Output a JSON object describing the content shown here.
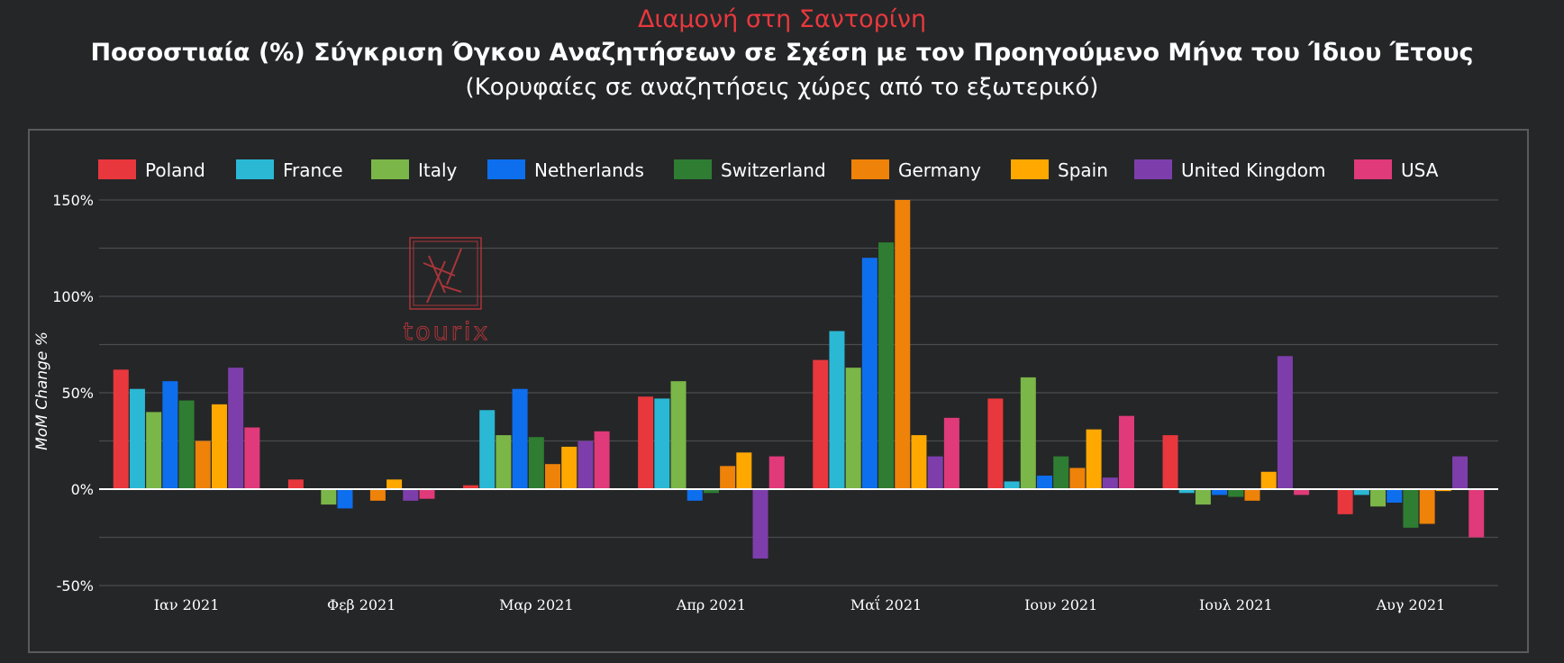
{
  "header": {
    "title": "Διαμονή στη Σαντορίνη",
    "subtitle": "Ποσοστιαία (%) Σύγκριση Όγκου Αναζητήσεων σε Σχέση με τον Προηγούμενο Μήνα του Ίδιου Έτους",
    "note": "(Κορυφαίες σε αναζητήσεις χώρες από το εξωτερικό)"
  },
  "watermark": {
    "text": "tourix"
  },
  "colors": {
    "background": "#252628",
    "grid": "#4a4b4e",
    "axis": "#ffffff",
    "text": "#ffffff",
    "title_accent": "#e8383d"
  },
  "chart_data": {
    "type": "bar",
    "ylabel": "MoM Change %",
    "xlabel": "",
    "ylim": [
      -50,
      150
    ],
    "yticks": [
      -50,
      0,
      50,
      100,
      150
    ],
    "ytick_labels": [
      "-50%",
      "0%",
      "50%",
      "100%",
      "150%"
    ],
    "grid": true,
    "legend_position": "top",
    "categories": [
      "Ιαν 2021",
      "Φεβ 2021",
      "Μαρ 2021",
      "Απρ 2021",
      "Μαΐ 2021",
      "Ιουν 2021",
      "Ιουλ 2021",
      "Αυγ 2021"
    ],
    "series": [
      {
        "name": "Poland",
        "color": "#e8383d",
        "values": [
          62,
          5,
          2,
          48,
          67,
          47,
          28,
          -13
        ]
      },
      {
        "name": "France",
        "color": "#2bb8d4",
        "values": [
          52,
          0,
          41,
          47,
          82,
          4,
          -2,
          -3
        ]
      },
      {
        "name": "Italy",
        "color": "#7ab648",
        "values": [
          40,
          -8,
          28,
          56,
          63,
          58,
          -8,
          -9
        ]
      },
      {
        "name": "Netherlands",
        "color": "#0d6fee",
        "values": [
          56,
          -10,
          52,
          -6,
          120,
          7,
          -3,
          -7
        ]
      },
      {
        "name": "Switzerland",
        "color": "#2e7d32",
        "values": [
          46,
          0,
          27,
          -2,
          128,
          17,
          -4,
          -20
        ]
      },
      {
        "name": "Germany",
        "color": "#ef8209",
        "values": [
          25,
          -6,
          13,
          12,
          150,
          11,
          -6,
          -18
        ]
      },
      {
        "name": "Spain",
        "color": "#ffa800",
        "values": [
          44,
          5,
          22,
          19,
          28,
          31,
          9,
          -1
        ]
      },
      {
        "name": "United Kingdom",
        "color": "#7d3eab",
        "values": [
          63,
          -6,
          25,
          -36,
          17,
          6,
          69,
          17
        ]
      },
      {
        "name": "USA",
        "color": "#e03a7a",
        "values": [
          32,
          -5,
          30,
          17,
          37,
          38,
          -3,
          -25
        ]
      }
    ]
  }
}
